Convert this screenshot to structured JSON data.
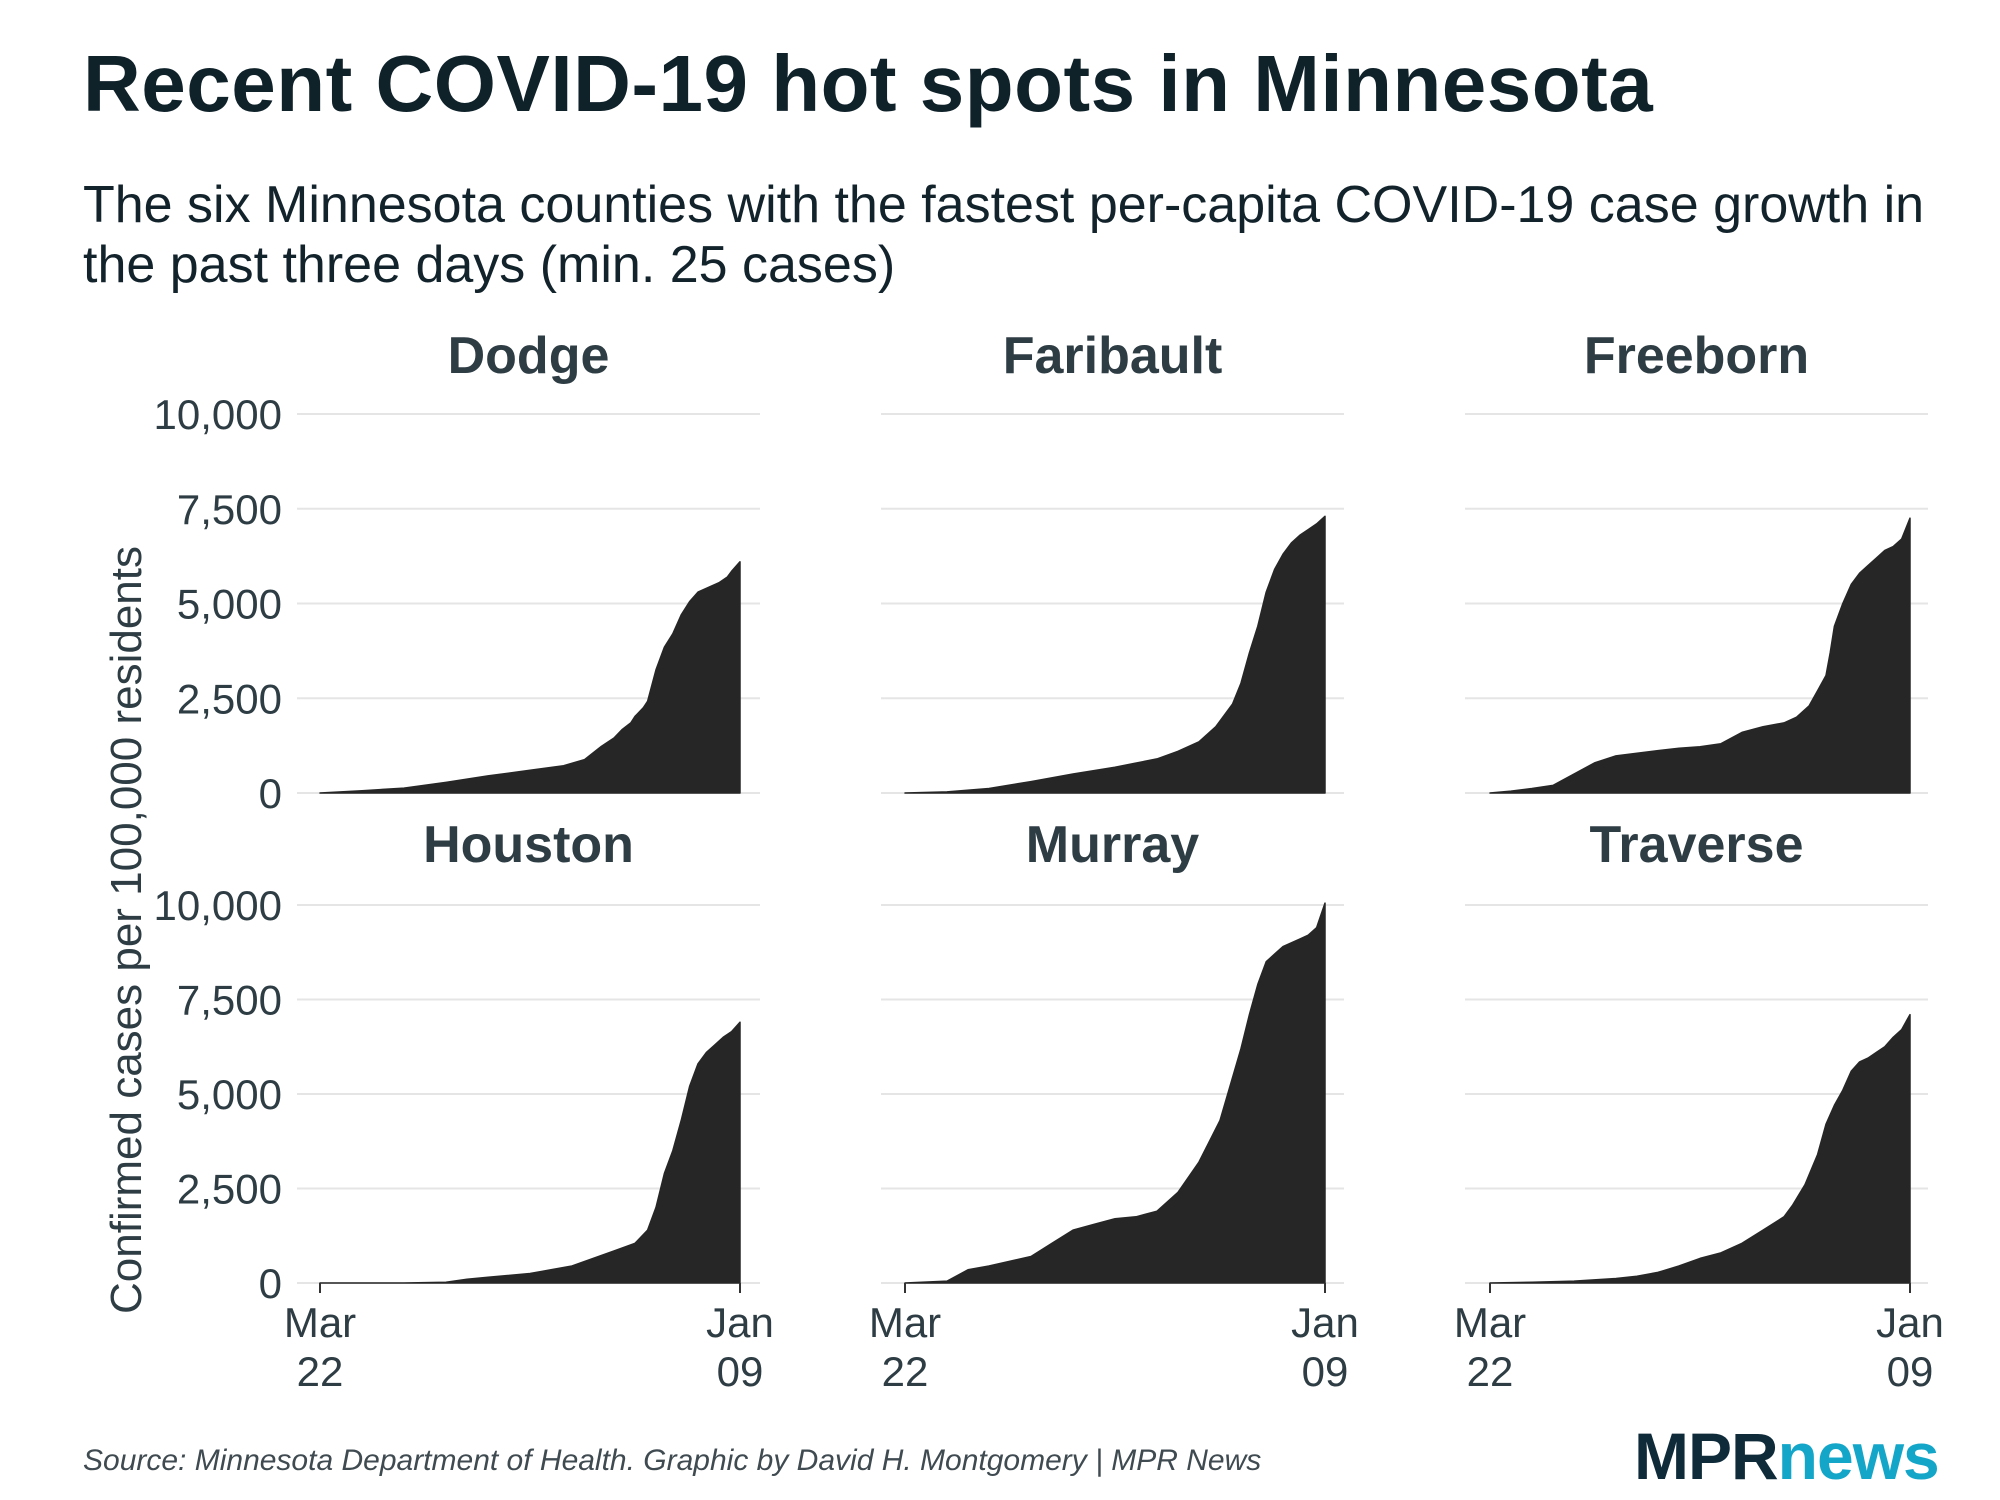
{
  "title": "Recent COVID-19 hot spots in Minnesota",
  "subtitle": "The six Minnesota counties with the fastest per-capita COVID-19 case growth in the past three days (min. 25 cases)",
  "source": "Source: Minnesota Department of Health. Graphic by David H. Montgomery | MPR News",
  "logo": {
    "part1": "MPR",
    "part2": "news"
  },
  "colors": {
    "area": "#262626",
    "grid": "#e5e5e5",
    "text": "#2e3d44"
  },
  "chart_data": {
    "type": "area",
    "layout": "small-multiples 3x2",
    "ylabel": "Confirmed cases per 100,000 residents",
    "ylim": [
      0,
      10000
    ],
    "yticks": [
      0,
      2500,
      5000,
      7500,
      10000
    ],
    "ytick_labels": [
      "0",
      "2,500",
      "5,000",
      "7,500",
      "10,000"
    ],
    "x_domain": [
      0,
      100
    ],
    "x_domain_note": "0 = Mar 22, 100 = Jan 09 (relative position in date range)",
    "xticks": [
      {
        "x": 0,
        "line1": "Mar",
        "line2": "22"
      },
      {
        "x": 100,
        "line1": "Jan",
        "line2": "09"
      }
    ],
    "panels": [
      {
        "name": "Dodge",
        "x": [
          0,
          10,
          20,
          30,
          40,
          50,
          58,
          63,
          67,
          70,
          72,
          74,
          75,
          77,
          78,
          80,
          82,
          84,
          86,
          88,
          90,
          93,
          95,
          97,
          98,
          100
        ],
        "y": [
          0,
          60,
          130,
          280,
          450,
          600,
          720,
          880,
          1230,
          1450,
          1680,
          1850,
          2020,
          2250,
          2420,
          3250,
          3850,
          4200,
          4700,
          5050,
          5300,
          5450,
          5550,
          5700,
          5850,
          6100
        ]
      },
      {
        "name": "Faribault",
        "x": [
          0,
          10,
          20,
          30,
          40,
          50,
          60,
          65,
          70,
          74,
          78,
          80,
          82,
          84,
          86,
          88,
          90,
          92,
          94,
          96,
          98,
          100
        ],
        "y": [
          0,
          30,
          120,
          300,
          500,
          680,
          900,
          1100,
          1350,
          1750,
          2350,
          2900,
          3700,
          4400,
          5300,
          5900,
          6300,
          6600,
          6800,
          6950,
          7100,
          7300
        ]
      },
      {
        "name": "Freeborn",
        "x": [
          0,
          5,
          10,
          15,
          20,
          25,
          30,
          35,
          40,
          45,
          50,
          55,
          60,
          65,
          70,
          73,
          76,
          78,
          80,
          81,
          82,
          84,
          86,
          88,
          90,
          92,
          94,
          96,
          98,
          100
        ],
        "y": [
          0,
          50,
          120,
          200,
          500,
          800,
          980,
          1050,
          1120,
          1180,
          1220,
          1300,
          1600,
          1750,
          1850,
          2000,
          2300,
          2700,
          3100,
          3700,
          4400,
          5000,
          5500,
          5800,
          6000,
          6200,
          6400,
          6500,
          6700,
          7250
        ]
      },
      {
        "name": "Houston",
        "x": [
          0,
          10,
          20,
          30,
          35,
          40,
          50,
          55,
          60,
          65,
          70,
          75,
          78,
          80,
          82,
          84,
          86,
          88,
          90,
          92,
          94,
          96,
          98,
          100
        ],
        "y": [
          0,
          0,
          0,
          20,
          100,
          150,
          250,
          350,
          450,
          650,
          850,
          1050,
          1400,
          2000,
          2900,
          3500,
          4300,
          5200,
          5800,
          6100,
          6300,
          6500,
          6650,
          6900
        ]
      },
      {
        "name": "Murray",
        "x": [
          0,
          10,
          15,
          20,
          30,
          35,
          40,
          45,
          50,
          55,
          60,
          65,
          70,
          75,
          80,
          82,
          84,
          86,
          88,
          90,
          92,
          94,
          96,
          98,
          100
        ],
        "y": [
          0,
          50,
          350,
          450,
          700,
          1050,
          1400,
          1550,
          1700,
          1750,
          1900,
          2400,
          3200,
          4300,
          6200,
          7100,
          7900,
          8500,
          8700,
          8900,
          9000,
          9100,
          9200,
          9400,
          10050
        ]
      },
      {
        "name": "Traverse",
        "x": [
          0,
          10,
          20,
          30,
          35,
          40,
          45,
          50,
          55,
          60,
          65,
          70,
          72,
          75,
          78,
          80,
          82,
          84,
          86,
          88,
          90,
          92,
          94,
          96,
          98,
          100
        ],
        "y": [
          0,
          20,
          50,
          120,
          180,
          280,
          450,
          650,
          800,
          1050,
          1400,
          1750,
          2050,
          2600,
          3400,
          4200,
          4700,
          5100,
          5600,
          5850,
          5950,
          6100,
          6250,
          6500,
          6700,
          7100
        ]
      }
    ]
  }
}
